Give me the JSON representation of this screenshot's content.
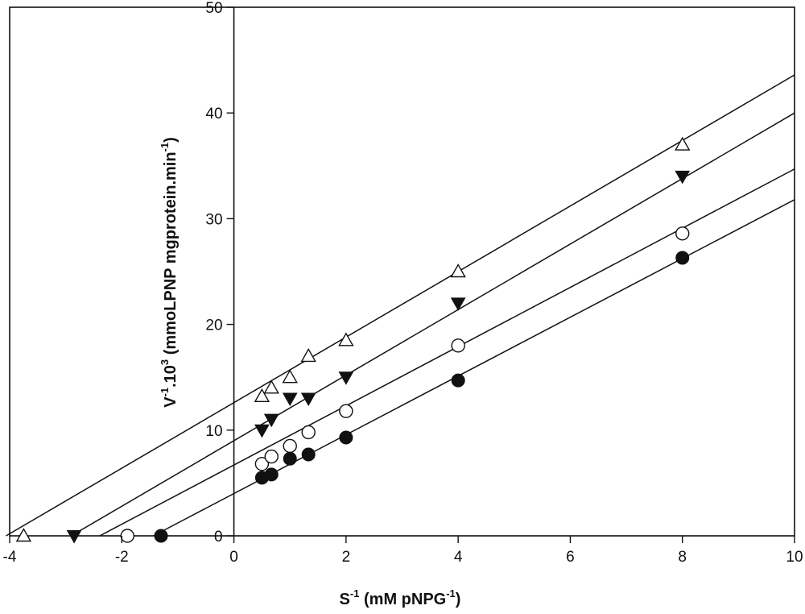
{
  "chart_data": {
    "type": "scatter",
    "title": "",
    "xlabel": {
      "base": "S",
      "sup": "-1",
      "rest": " (mM pNPG",
      "sup2": "-1",
      "end": ")"
    },
    "ylabel": {
      "base": "V",
      "sup": "-1",
      "mid": ".10",
      "sup2": "3",
      "rest": "  (mmoLPNP mgprotein.min",
      "sup3": "-1",
      "end": ")"
    },
    "xlim": [
      -4,
      10
    ],
    "ylim": [
      0,
      50
    ],
    "xticks": [
      -4,
      -2,
      0,
      2,
      4,
      6,
      8,
      10
    ],
    "yticks": [
      0,
      10,
      20,
      30,
      40,
      50
    ],
    "xtick_labels": [
      "-4",
      "-2",
      "0",
      "2",
      "4",
      "6",
      "8",
      "10"
    ],
    "ytick_labels": [
      "0",
      "10",
      "20",
      "30",
      "40",
      "50"
    ],
    "grid": false,
    "legend": "none",
    "series": [
      {
        "marker": "triangle-open",
        "points": [
          [
            -3.75,
            0
          ],
          [
            0.5,
            13.2
          ],
          [
            0.67,
            14.0
          ],
          [
            1.0,
            15.0
          ],
          [
            1.33,
            17.0
          ],
          [
            2.0,
            18.5
          ],
          [
            4.0,
            25.0
          ],
          [
            8.0,
            37.0
          ]
        ],
        "fit": {
          "slope": 3.1,
          "intercept": 12.6
        }
      },
      {
        "marker": "triangle-down-filled",
        "points": [
          [
            -2.85,
            0
          ],
          [
            0.5,
            10.0
          ],
          [
            0.67,
            11.0
          ],
          [
            1.0,
            13.0
          ],
          [
            1.33,
            13.0
          ],
          [
            2.0,
            15.0
          ],
          [
            4.0,
            22.0
          ],
          [
            8.0,
            34.0
          ]
        ],
        "fit": {
          "slope": 3.1,
          "intercept": 9.0
        }
      },
      {
        "marker": "circle-open",
        "points": [
          [
            -1.9,
            0
          ],
          [
            0.5,
            6.8
          ],
          [
            0.67,
            7.5
          ],
          [
            1.0,
            8.5
          ],
          [
            1.33,
            9.8
          ],
          [
            2.0,
            11.8
          ],
          [
            4.0,
            18.0
          ],
          [
            8.0,
            28.6
          ]
        ],
        "fit": {
          "slope": 2.8,
          "intercept": 6.7
        }
      },
      {
        "marker": "circle-filled",
        "points": [
          [
            -1.3,
            0
          ],
          [
            0.5,
            5.5
          ],
          [
            0.67,
            5.8
          ],
          [
            1.0,
            7.3
          ],
          [
            1.33,
            7.7
          ],
          [
            2.0,
            9.3
          ],
          [
            4.0,
            14.7
          ],
          [
            8.0,
            26.3
          ]
        ],
        "fit": {
          "slope": 2.78,
          "intercept": 4.0
        }
      }
    ]
  }
}
